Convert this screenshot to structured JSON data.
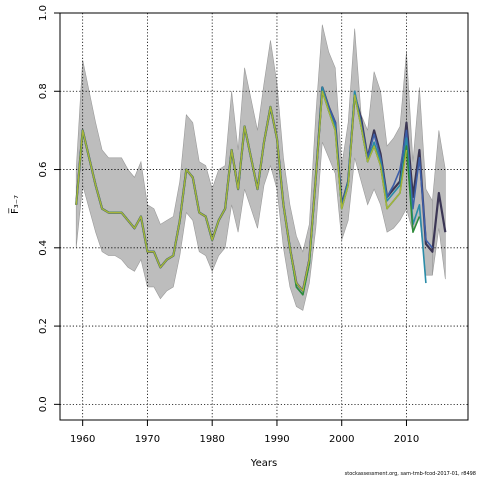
{
  "chart_data": {
    "type": "line",
    "title": "",
    "xlabel": "Years",
    "ylabel": "F̅₃₋₇",
    "xlim": [
      1956.5,
      2019.5
    ],
    "ylim": [
      -0.04,
      1.0
    ],
    "xticks": [
      1960,
      1970,
      1980,
      1990,
      2000,
      2010
    ],
    "yticks": [
      0.0,
      0.2,
      0.4,
      0.6,
      0.8,
      1.0
    ],
    "ytick_labels": [
      "0.0",
      "0.2",
      "0.4",
      "0.6",
      "0.8",
      "1.0"
    ],
    "grid": "dotted",
    "legend": "none",
    "band": {
      "x": [
        1959,
        1960,
        1961,
        1962,
        1963,
        1964,
        1965,
        1966,
        1967,
        1968,
        1969,
        1970,
        1971,
        1972,
        1973,
        1974,
        1975,
        1976,
        1977,
        1978,
        1979,
        1980,
        1981,
        1982,
        1983,
        1984,
        1985,
        1986,
        1987,
        1988,
        1989,
        1990,
        1991,
        1992,
        1993,
        1994,
        1995,
        1996,
        1997,
        1998,
        1999,
        2000,
        2001,
        2002,
        2003,
        2004,
        2005,
        2006,
        2007,
        2008,
        2009,
        2010
      ],
      "lower": [
        0.4,
        0.56,
        0.5,
        0.44,
        0.39,
        0.38,
        0.38,
        0.37,
        0.35,
        0.34,
        0.37,
        0.3,
        0.3,
        0.27,
        0.29,
        0.3,
        0.38,
        0.49,
        0.47,
        0.39,
        0.38,
        0.34,
        0.38,
        0.4,
        0.51,
        0.44,
        0.55,
        0.5,
        0.45,
        0.56,
        0.61,
        0.55,
        0.4,
        0.3,
        0.25,
        0.24,
        0.31,
        0.45,
        0.67,
        0.63,
        0.59,
        0.42,
        0.47,
        0.63,
        0.57,
        0.51,
        0.55,
        0.51,
        0.44,
        0.45,
        0.47,
        0.5
      ],
      "upper": [
        0.6,
        0.88,
        0.8,
        0.72,
        0.65,
        0.63,
        0.63,
        0.63,
        0.6,
        0.58,
        0.62,
        0.51,
        0.5,
        0.46,
        0.47,
        0.48,
        0.57,
        0.74,
        0.72,
        0.62,
        0.61,
        0.55,
        0.6,
        0.61,
        0.8,
        0.65,
        0.86,
        0.78,
        0.7,
        0.82,
        0.93,
        0.82,
        0.63,
        0.51,
        0.43,
        0.39,
        0.46,
        0.74,
        0.97,
        0.9,
        0.86,
        0.61,
        0.72,
        0.96,
        0.74,
        0.7,
        0.85,
        0.8,
        0.66,
        0.68,
        0.71,
        0.9
      ]
    },
    "band_tail": [
      {
        "x": [
          2010,
          2011,
          2012,
          2013,
          2014
        ],
        "lower": [
          0.5,
          0.44,
          0.48,
          0.33,
          0.33
        ],
        "upper": [
          0.9,
          0.62,
          0.81,
          0.55,
          0.52
        ]
      },
      {
        "x": [
          2014,
          2015,
          2016
        ],
        "lower": [
          0.33,
          0.45,
          0.32
        ],
        "upper": [
          0.52,
          0.7,
          0.6
        ]
      }
    ],
    "series": [
      {
        "color": "#3b3654",
        "width": 2.2,
        "x": [
          1959,
          1960,
          1961,
          1962,
          1963,
          1964,
          1965,
          1966,
          1967,
          1968,
          1969,
          1970,
          1971,
          1972,
          1973,
          1974,
          1975,
          1976,
          1977,
          1978,
          1979,
          1980,
          1981,
          1982,
          1983,
          1984,
          1985,
          1986,
          1987,
          1988,
          1989,
          1990,
          1991,
          1992,
          1993,
          1994,
          1995,
          1996,
          1997,
          1998,
          1999,
          2000,
          2001,
          2002,
          2003,
          2004,
          2005,
          2006,
          2007,
          2008,
          2009,
          2010,
          2011,
          2012,
          2013,
          2014,
          2015,
          2016
        ],
        "y": [
          0.51,
          0.7,
          0.63,
          0.56,
          0.5,
          0.49,
          0.49,
          0.49,
          0.47,
          0.45,
          0.48,
          0.39,
          0.39,
          0.35,
          0.37,
          0.38,
          0.47,
          0.6,
          0.58,
          0.49,
          0.48,
          0.42,
          0.47,
          0.5,
          0.65,
          0.55,
          0.71,
          0.63,
          0.55,
          0.67,
          0.76,
          0.68,
          0.51,
          0.4,
          0.31,
          0.29,
          0.37,
          0.58,
          0.81,
          0.76,
          0.72,
          0.51,
          0.57,
          0.79,
          0.73,
          0.63,
          0.7,
          0.64,
          0.53,
          0.55,
          0.57,
          0.72,
          0.53,
          0.65,
          0.41,
          0.39,
          0.54,
          0.44
        ]
      },
      {
        "color": "#3d5ea8",
        "width": 1.6,
        "x": [
          1959,
          1960,
          1961,
          1962,
          1963,
          1964,
          1965,
          1966,
          1967,
          1968,
          1969,
          1970,
          1971,
          1972,
          1973,
          1974,
          1975,
          1976,
          1977,
          1978,
          1979,
          1980,
          1981,
          1982,
          1983,
          1984,
          1985,
          1986,
          1987,
          1988,
          1989,
          1990,
          1991,
          1992,
          1993,
          1994,
          1995,
          1996,
          1997,
          1998,
          1999,
          2000,
          2001,
          2002,
          2003,
          2004,
          2005,
          2006,
          2007,
          2008,
          2009,
          2010,
          2011,
          2012,
          2013,
          2014
        ],
        "y": [
          0.51,
          0.7,
          0.63,
          0.56,
          0.5,
          0.49,
          0.49,
          0.49,
          0.47,
          0.45,
          0.48,
          0.39,
          0.39,
          0.35,
          0.37,
          0.38,
          0.47,
          0.6,
          0.58,
          0.49,
          0.48,
          0.42,
          0.47,
          0.5,
          0.65,
          0.55,
          0.71,
          0.63,
          0.55,
          0.67,
          0.76,
          0.68,
          0.51,
          0.4,
          0.31,
          0.29,
          0.37,
          0.58,
          0.81,
          0.76,
          0.72,
          0.51,
          0.57,
          0.8,
          0.72,
          0.63,
          0.69,
          0.63,
          0.53,
          0.56,
          0.6,
          0.7,
          0.5,
          0.63,
          0.42,
          0.4
        ]
      },
      {
        "color": "#2a8ca8",
        "width": 1.6,
        "x": [
          1959,
          1960,
          1961,
          1962,
          1963,
          1964,
          1965,
          1966,
          1967,
          1968,
          1969,
          1970,
          1971,
          1972,
          1973,
          1974,
          1975,
          1976,
          1977,
          1978,
          1979,
          1980,
          1981,
          1982,
          1983,
          1984,
          1985,
          1986,
          1987,
          1988,
          1989,
          1990,
          1991,
          1992,
          1993,
          1994,
          1995,
          1996,
          1997,
          1998,
          1999,
          2000,
          2001,
          2002,
          2003,
          2004,
          2005,
          2006,
          2007,
          2008,
          2009,
          2010,
          2011,
          2012,
          2013
        ],
        "y": [
          0.51,
          0.7,
          0.63,
          0.56,
          0.5,
          0.49,
          0.49,
          0.49,
          0.47,
          0.45,
          0.48,
          0.39,
          0.39,
          0.35,
          0.37,
          0.38,
          0.47,
          0.6,
          0.58,
          0.49,
          0.48,
          0.42,
          0.47,
          0.5,
          0.65,
          0.55,
          0.71,
          0.63,
          0.55,
          0.67,
          0.76,
          0.68,
          0.51,
          0.4,
          0.3,
          0.28,
          0.36,
          0.58,
          0.81,
          0.75,
          0.71,
          0.5,
          0.57,
          0.8,
          0.71,
          0.62,
          0.67,
          0.62,
          0.52,
          0.54,
          0.56,
          0.68,
          0.46,
          0.51,
          0.31
        ]
      },
      {
        "color": "#2e8b3a",
        "width": 1.6,
        "x": [
          1959,
          1960,
          1961,
          1962,
          1963,
          1964,
          1965,
          1966,
          1967,
          1968,
          1969,
          1970,
          1971,
          1972,
          1973,
          1974,
          1975,
          1976,
          1977,
          1978,
          1979,
          1980,
          1981,
          1982,
          1983,
          1984,
          1985,
          1986,
          1987,
          1988,
          1989,
          1990,
          1991,
          1992,
          1993,
          1994,
          1995,
          1996,
          1997,
          1998,
          1999,
          2000,
          2001,
          2002,
          2003,
          2004,
          2005,
          2006,
          2007,
          2008,
          2009,
          2010,
          2011,
          2012
        ],
        "y": [
          0.51,
          0.7,
          0.63,
          0.56,
          0.5,
          0.49,
          0.49,
          0.49,
          0.47,
          0.45,
          0.48,
          0.39,
          0.39,
          0.35,
          0.37,
          0.38,
          0.47,
          0.6,
          0.58,
          0.49,
          0.48,
          0.42,
          0.47,
          0.5,
          0.65,
          0.55,
          0.71,
          0.63,
          0.55,
          0.67,
          0.76,
          0.68,
          0.51,
          0.4,
          0.3,
          0.28,
          0.36,
          0.58,
          0.8,
          0.75,
          0.7,
          0.5,
          0.56,
          0.79,
          0.71,
          0.62,
          0.66,
          0.61,
          0.5,
          0.52,
          0.54,
          0.66,
          0.44,
          0.48
        ]
      },
      {
        "color": "#a8b43a",
        "width": 1.4,
        "x": [
          1959,
          1960,
          1961,
          1962,
          1963,
          1964,
          1965,
          1966,
          1967,
          1968,
          1969,
          1970,
          1971,
          1972,
          1973,
          1974,
          1975,
          1976,
          1977,
          1978,
          1979,
          1980,
          1981,
          1982,
          1983,
          1984,
          1985,
          1986,
          1987,
          1988,
          1989,
          1990,
          1991,
          1992,
          1993,
          1994,
          1995,
          1996,
          1997,
          1998,
          1999,
          2000,
          2001,
          2002,
          2003,
          2004,
          2005,
          2006,
          2007,
          2008,
          2009,
          2010
        ],
        "y": [
          0.51,
          0.7,
          0.63,
          0.56,
          0.5,
          0.49,
          0.49,
          0.49,
          0.47,
          0.45,
          0.48,
          0.39,
          0.39,
          0.35,
          0.37,
          0.38,
          0.47,
          0.6,
          0.58,
          0.49,
          0.48,
          0.42,
          0.47,
          0.5,
          0.65,
          0.55,
          0.71,
          0.63,
          0.55,
          0.67,
          0.76,
          0.68,
          0.51,
          0.4,
          0.31,
          0.29,
          0.37,
          0.58,
          0.8,
          0.75,
          0.7,
          0.5,
          0.56,
          0.79,
          0.71,
          0.62,
          0.66,
          0.61,
          0.5,
          0.52,
          0.54,
          0.65
        ]
      }
    ]
  },
  "footer": "stockassessment.org, sam-tmb-fcod-2017-01, r8498"
}
